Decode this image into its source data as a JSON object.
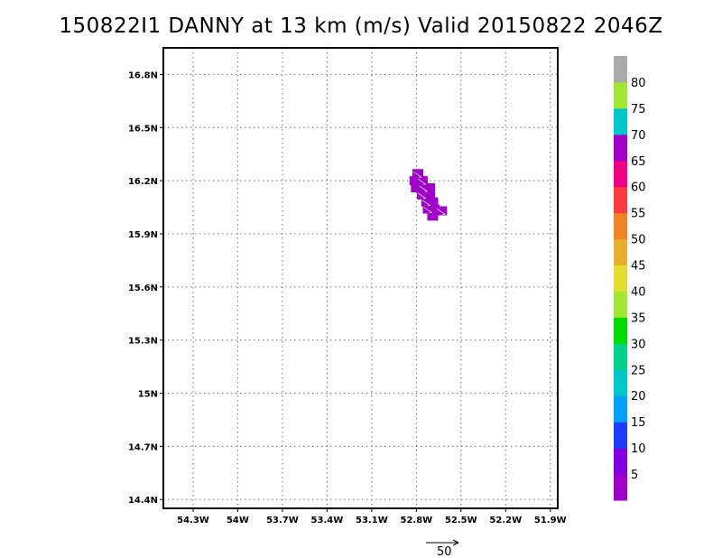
{
  "chart_data": {
    "type": "heatmap",
    "title": "150822I1 DANNY at 13 km (m/s) Valid 20150822 2046Z",
    "x_ticks": [
      "54.3W",
      "54W",
      "53.7W",
      "53.4W",
      "53.1W",
      "52.8W",
      "52.5W",
      "52.2W",
      "51.9W"
    ],
    "x_values": [
      -54.3,
      -54.0,
      -53.7,
      -53.4,
      -53.1,
      -52.8,
      -52.5,
      -52.2,
      -51.9
    ],
    "y_ticks": [
      "14.4N",
      "14.7N",
      "15N",
      "15.3N",
      "15.6N",
      "15.9N",
      "16.2N",
      "16.5N",
      "16.8N"
    ],
    "y_values": [
      14.4,
      14.7,
      15.0,
      15.3,
      15.6,
      15.9,
      16.2,
      16.5,
      16.8
    ],
    "xlim": [
      -54.5,
      -51.85
    ],
    "ylim": [
      14.35,
      16.95
    ],
    "grid": true,
    "colorbar": {
      "labels": [
        "5",
        "10",
        "15",
        "20",
        "25",
        "30",
        "35",
        "40",
        "45",
        "50",
        "55",
        "60",
        "65",
        "70",
        "75",
        "80"
      ],
      "colors": [
        "#a000c8",
        "#8200dc",
        "#1e3cff",
        "#00a0ff",
        "#00c8c8",
        "#00d28c",
        "#00dc00",
        "#a0e632",
        "#e6dc32",
        "#e6af2d",
        "#f08228",
        "#fa3c3c",
        "#f00082",
        "#a000c8",
        "#00c8c8",
        "#a0e632",
        "#aaaaaa"
      ]
    },
    "cells": [
      {
        "lon": -52.79,
        "lat": 16.24,
        "color": "#a000c8"
      },
      {
        "lon": -52.81,
        "lat": 16.2,
        "color": "#a000c8"
      },
      {
        "lon": -52.76,
        "lat": 16.2,
        "color": "#a000c8"
      },
      {
        "lon": -52.8,
        "lat": 16.16,
        "color": "#a000c8"
      },
      {
        "lon": -52.75,
        "lat": 16.16,
        "color": "#a000c8"
      },
      {
        "lon": -52.71,
        "lat": 16.16,
        "color": "#a000c8"
      },
      {
        "lon": -52.76,
        "lat": 16.12,
        "color": "#a000c8"
      },
      {
        "lon": -52.71,
        "lat": 16.12,
        "color": "#a000c8"
      },
      {
        "lon": -52.73,
        "lat": 16.08,
        "color": "#a000c8"
      },
      {
        "lon": -52.69,
        "lat": 16.08,
        "color": "#a000c8"
      },
      {
        "lon": -52.72,
        "lat": 16.04,
        "color": "#a000c8"
      },
      {
        "lon": -52.68,
        "lat": 16.04,
        "color": "#a000c8"
      },
      {
        "lon": -52.63,
        "lat": 16.03,
        "color": "#a000c8"
      },
      {
        "lon": -52.69,
        "lat": 16.0,
        "color": "#a000c8"
      }
    ],
    "reference_vector": {
      "label": "50"
    }
  }
}
